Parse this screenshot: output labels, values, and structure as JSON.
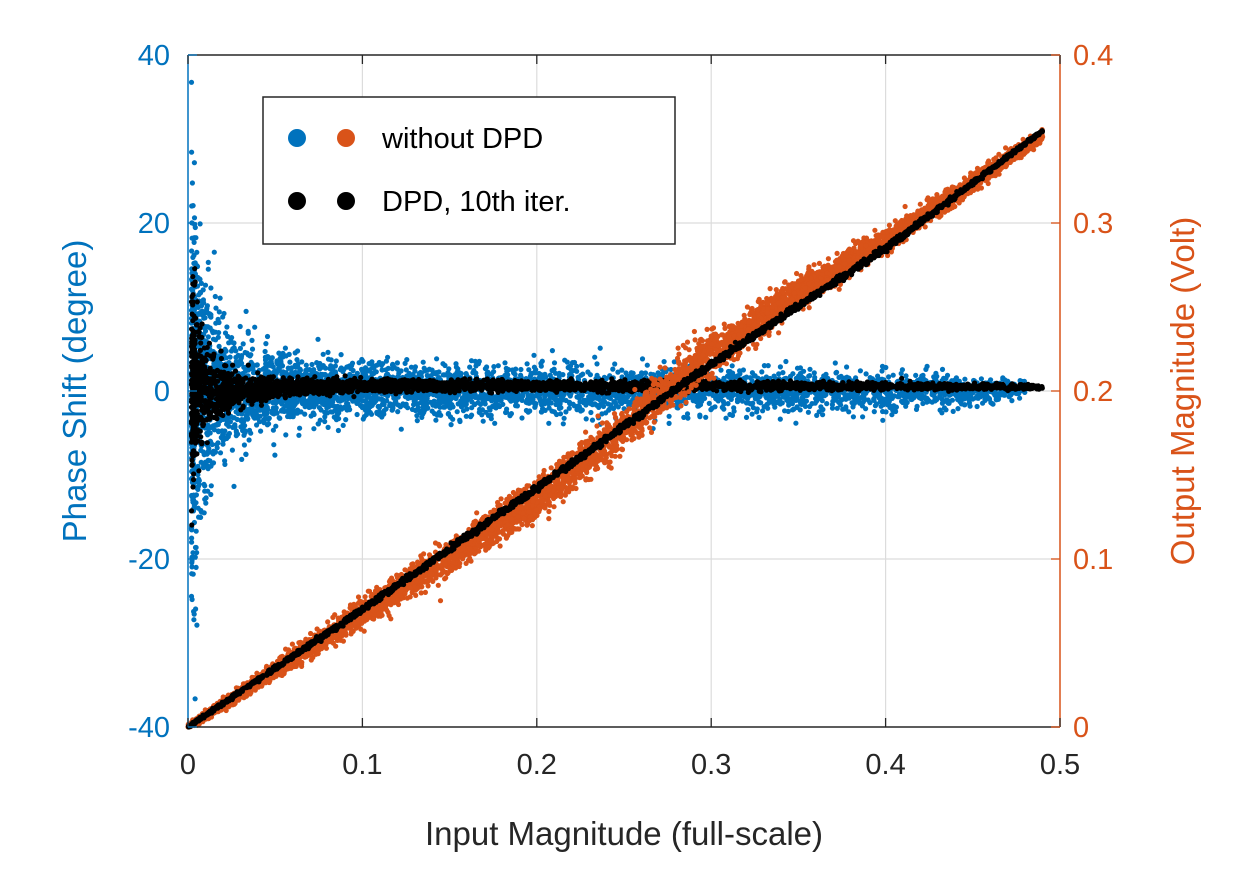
{
  "chart_data": {
    "type": "scatter",
    "xlabel": "Input Magnitude (full-scale)",
    "ylabel_left": "Phase Shift (degree)",
    "ylabel_right": "Output Magnitude (Volt)",
    "xlim": [
      0,
      0.5
    ],
    "ylim_left": [
      -40,
      40
    ],
    "ylim_right": [
      0,
      0.4
    ],
    "xticks": [
      "0",
      "0.1",
      "0.2",
      "0.3",
      "0.4",
      "0.5"
    ],
    "yticks_left": [
      "-40",
      "-20",
      "0",
      "20",
      "40"
    ],
    "yticks_right": [
      "0",
      "0.1",
      "0.2",
      "0.3",
      "0.4"
    ],
    "grid": true,
    "legend_position": "top-left",
    "legend": [
      {
        "label": "without DPD",
        "colors": [
          "#0072BD",
          "#D95319"
        ]
      },
      {
        "label": "DPD, 10th iter.",
        "colors": [
          "#000000",
          "#000000"
        ]
      }
    ],
    "series": [
      {
        "legend_group": "without DPD",
        "axis": "left",
        "color": "#0072BD",
        "quantity": "phase",
        "x": [
          0.002,
          0.005,
          0.01,
          0.015,
          0.02,
          0.03,
          0.04,
          0.05,
          0.06,
          0.08,
          0.1,
          0.15,
          0.2,
          0.25,
          0.3,
          0.35,
          0.4,
          0.45,
          0.48
        ],
        "center": [
          0,
          0,
          0,
          0,
          0,
          0,
          0,
          0,
          0,
          0,
          0,
          0,
          0,
          0,
          0,
          0,
          0,
          0,
          0.2
        ],
        "spread": [
          30,
          22,
          16,
          12,
          10,
          7,
          6,
          5,
          4.5,
          4,
          3.5,
          3.2,
          3,
          3,
          3,
          2.8,
          2.5,
          2,
          1
        ]
      },
      {
        "legend_group": "DPD, 10th iter.",
        "axis": "left",
        "color": "#000000",
        "quantity": "phase",
        "x": [
          0.002,
          0.005,
          0.01,
          0.015,
          0.02,
          0.03,
          0.05,
          0.08,
          0.1,
          0.2,
          0.3,
          0.4,
          0.45,
          0.49
        ],
        "center": [
          0,
          0,
          0,
          0,
          0,
          0,
          0.5,
          0.6,
          0.6,
          0.6,
          0.6,
          0.6,
          0.5,
          0.5
        ],
        "spread": [
          14,
          9,
          6,
          4,
          3,
          2,
          1.3,
          0.9,
          0.8,
          0.7,
          0.6,
          0.5,
          0.4,
          0.3
        ]
      },
      {
        "legend_group": "without DPD",
        "axis": "right",
        "color": "#D95319",
        "quantity": "magnitude",
        "x": [
          0,
          0.05,
          0.1,
          0.15,
          0.2,
          0.25,
          0.28,
          0.3,
          0.35,
          0.4,
          0.45,
          0.49
        ],
        "center": [
          0,
          0.034,
          0.068,
          0.102,
          0.136,
          0.178,
          0.205,
          0.222,
          0.259,
          0.289,
          0.324,
          0.352
        ],
        "spread": [
          0.002,
          0.006,
          0.009,
          0.011,
          0.013,
          0.014,
          0.014,
          0.013,
          0.01,
          0.008,
          0.006,
          0.004
        ]
      },
      {
        "legend_group": "DPD, 10th iter.",
        "axis": "right",
        "color": "#000000",
        "quantity": "magnitude",
        "x": [
          0,
          0.1,
          0.2,
          0.3,
          0.4,
          0.49
        ],
        "center": [
          0,
          0.07,
          0.142,
          0.216,
          0.285,
          0.355
        ],
        "spread": [
          0.001,
          0.002,
          0.002,
          0.002,
          0.002,
          0.001
        ]
      }
    ]
  }
}
